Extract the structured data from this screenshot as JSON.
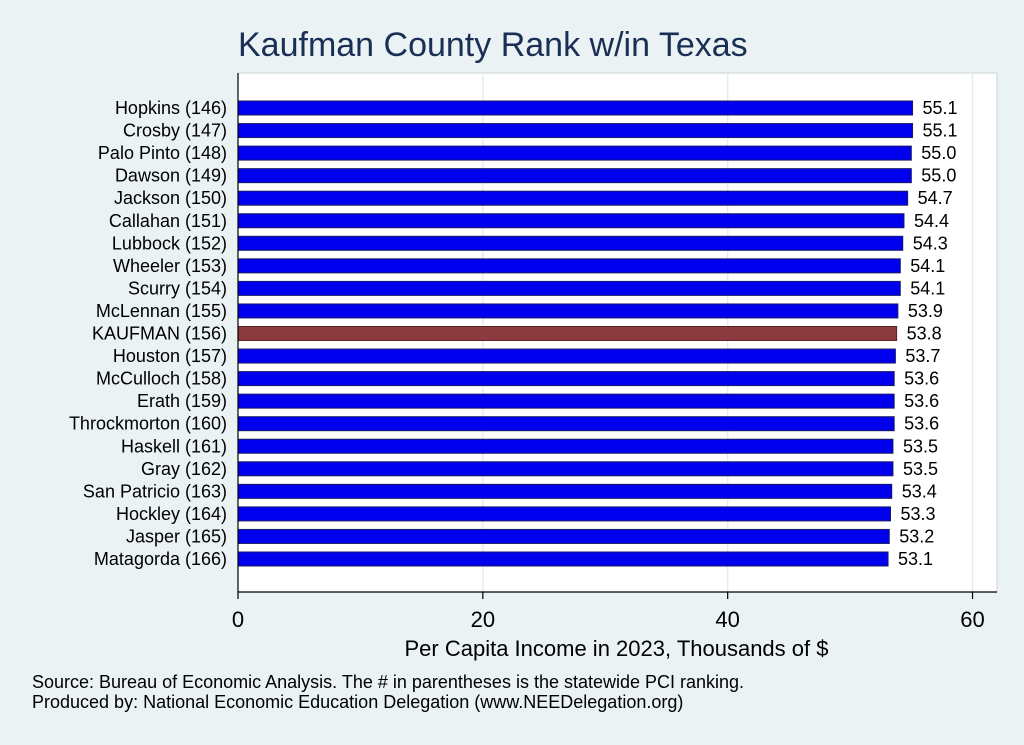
{
  "chart_data": {
    "type": "bar",
    "orientation": "horizontal",
    "title": "Kaufman County Rank w/in Texas",
    "xlabel": "Per Capita Income in 2023, Thousands of $",
    "xlim": [
      0,
      62
    ],
    "xticks": [
      0,
      20,
      40,
      60
    ],
    "grid": true,
    "categories": [
      "Hopkins (146)",
      "Crosby (147)",
      "Palo Pinto (148)",
      "Dawson (149)",
      "Jackson (150)",
      "Callahan (151)",
      "Lubbock (152)",
      "Wheeler (153)",
      "Scurry (154)",
      "McLennan (155)",
      "KAUFMAN (156)",
      "Houston (157)",
      "McCulloch (158)",
      "Erath (159)",
      "Throckmorton (160)",
      "Haskell (161)",
      "Gray (162)",
      "San Patricio (163)",
      "Hockley (164)",
      "Jasper (165)",
      "Matagorda (166)"
    ],
    "values": [
      55.1,
      55.1,
      55.0,
      55.0,
      54.7,
      54.4,
      54.3,
      54.1,
      54.1,
      53.9,
      53.8,
      53.7,
      53.6,
      53.6,
      53.6,
      53.5,
      53.5,
      53.4,
      53.3,
      53.2,
      53.1
    ],
    "value_labels": [
      "55.1",
      "55.1",
      "55.0",
      "55.0",
      "54.7",
      "54.4",
      "54.3",
      "54.1",
      "54.1",
      "53.9",
      "53.8",
      "53.7",
      "53.6",
      "53.6",
      "53.6",
      "53.5",
      "53.5",
      "53.4",
      "53.3",
      "53.2",
      "53.1"
    ],
    "highlight_category": "KAUFMAN (156)",
    "colors": {
      "bar": "#0000ee",
      "highlight": "#8b3a3e",
      "background": "#eaf2f3",
      "plot_background": "#ffffff",
      "grid": "#e4ecef",
      "title": "#1a2f55"
    }
  },
  "notes": {
    "source": "Source: Bureau of Economic Analysis. The # in parentheses is the statewide PCI ranking.",
    "producer": "Produced by: National Economic Education Delegation (www.NEEDelegation.org)"
  }
}
